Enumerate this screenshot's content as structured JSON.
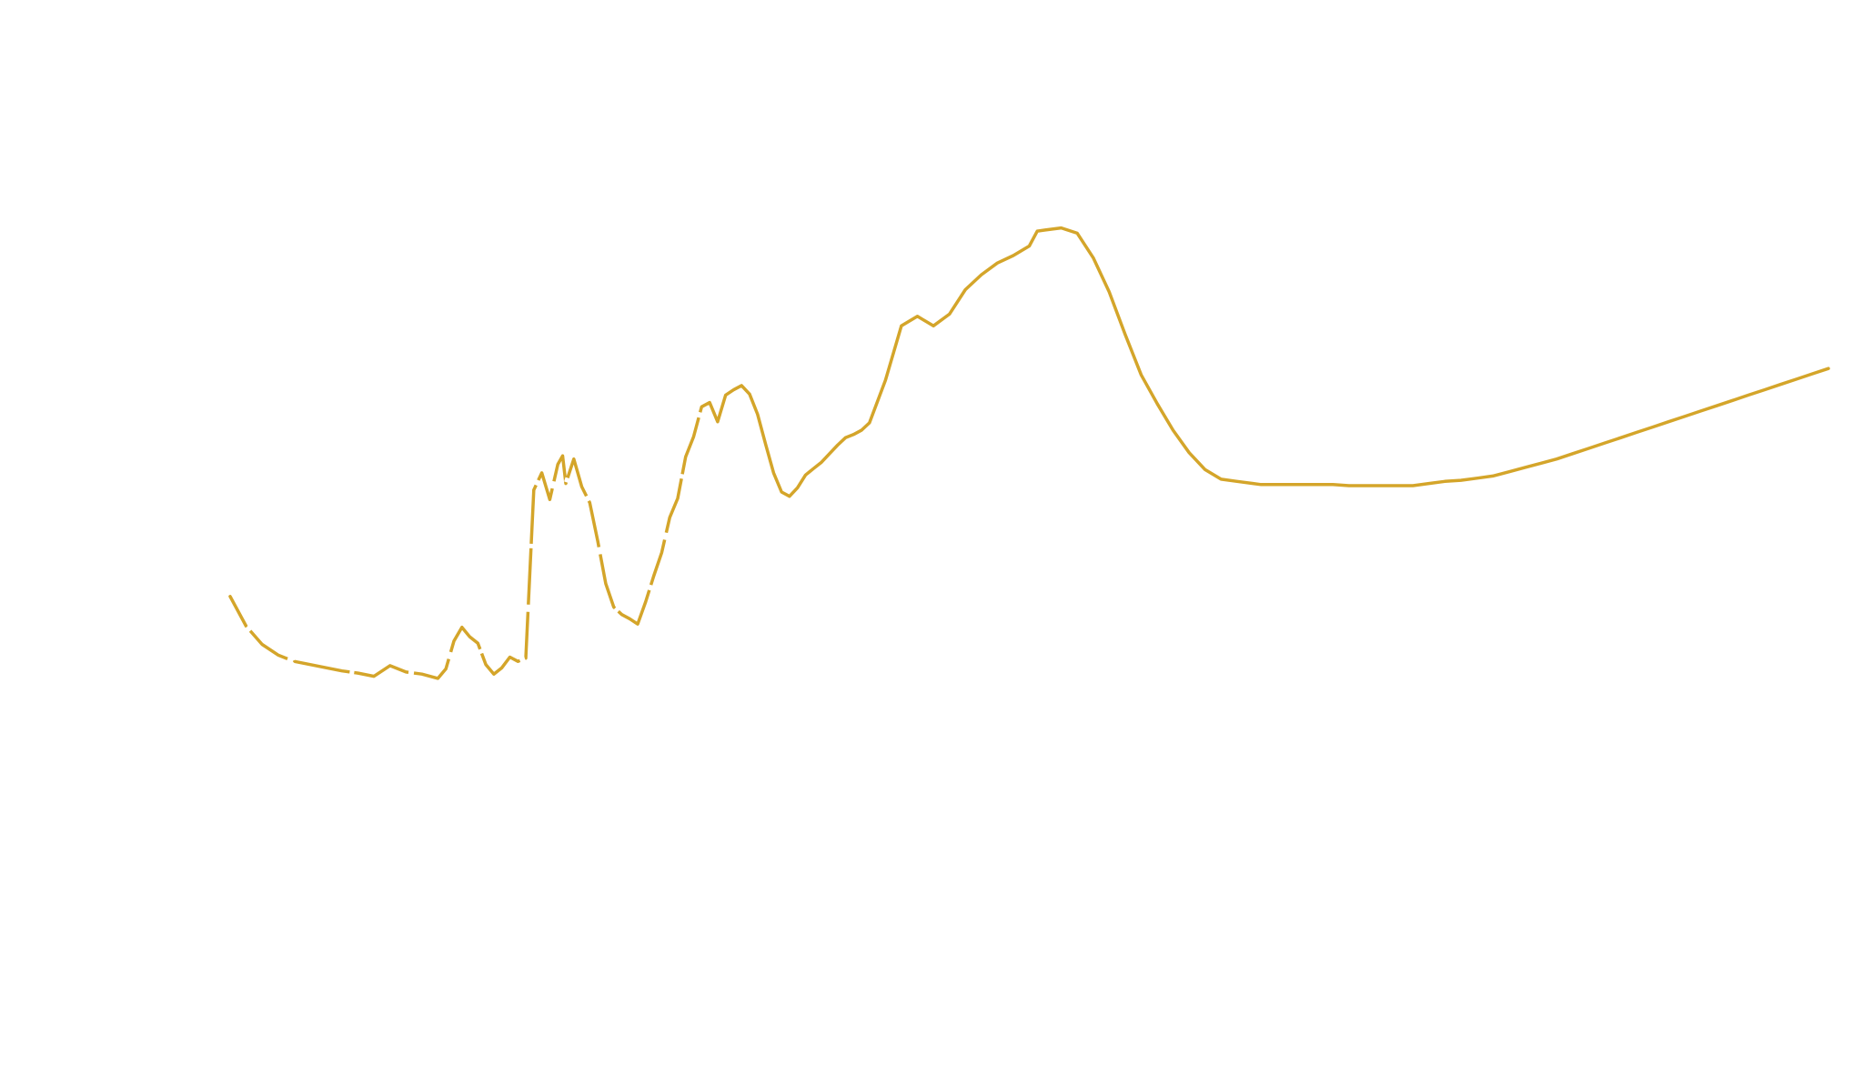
{
  "chart_data": {
    "type": "line",
    "title": "",
    "xlabel": "",
    "ylabel": "",
    "grid": false,
    "legend": "none",
    "axes_visible": false,
    "xlim": [
      0,
      100
    ],
    "ylim": [
      0,
      100
    ],
    "series": [
      {
        "color": "#d4a52a",
        "gap_color": "#ffffff",
        "x": [
          0,
          1,
          2,
          3,
          4,
          5,
          6,
          7,
          8,
          9,
          10,
          11,
          12,
          13,
          13.5,
          14,
          14.5,
          15,
          15.5,
          16,
          16.5,
          17,
          17.5,
          18,
          18.5,
          19,
          19.5,
          20,
          20.5,
          20.8,
          21,
          21.5,
          22,
          22.5,
          23,
          23.5,
          24,
          24.5,
          25,
          25.5,
          26,
          26.5,
          27,
          27.5,
          28,
          28.5,
          29,
          29.5,
          30,
          30.5,
          31,
          31.5,
          32,
          32.5,
          33,
          33.5,
          34,
          34.5,
          35,
          35.5,
          36,
          36.5,
          37,
          37.5,
          38,
          38.5,
          39,
          39.5,
          40,
          41,
          42,
          43,
          44,
          45,
          46,
          47,
          48,
          49,
          50,
          50.5,
          51,
          52,
          53,
          54,
          55,
          56,
          57,
          58,
          59,
          60,
          61,
          62,
          63,
          64,
          64.5,
          65,
          66,
          67,
          68,
          69,
          70,
          71,
          72,
          73,
          74,
          75,
          76,
          77,
          78,
          79,
          80,
          81,
          82,
          83,
          84,
          85,
          86,
          87,
          88,
          89,
          90,
          91,
          92,
          93,
          94,
          95,
          96,
          97,
          98,
          99,
          100
        ],
        "y": [
          44.0,
          41.2,
          39.5,
          38.5,
          37.9,
          37.6,
          37.3,
          37.0,
          36.8,
          36.5,
          37.5,
          36.9,
          36.7,
          36.3,
          37.2,
          39.8,
          41.1,
          40.2,
          39.6,
          37.6,
          36.7,
          37.3,
          38.3,
          37.9,
          38.2,
          54.0,
          55.6,
          53.1,
          56.4,
          57.2,
          54.6,
          56.9,
          54.3,
          52.8,
          49.2,
          45.2,
          43.0,
          42.3,
          41.9,
          41.4,
          43.5,
          45.9,
          48.1,
          51.4,
          53.2,
          57.1,
          59.0,
          61.8,
          62.2,
          60.4,
          62.9,
          63.4,
          63.8,
          63.0,
          61.1,
          58.3,
          55.6,
          53.8,
          53.4,
          54.2,
          55.4,
          56.0,
          56.6,
          57.4,
          58.2,
          58.9,
          59.2,
          59.6,
          60.3,
          64.3,
          69.4,
          70.3,
          69.4,
          70.5,
          72.8,
          74.2,
          75.3,
          76.0,
          76.9,
          78.3,
          78.4,
          78.6,
          78.1,
          75.8,
          72.6,
          68.6,
          64.8,
          62.1,
          59.6,
          57.5,
          55.9,
          55.0,
          54.8,
          54.6,
          54.5,
          54.5,
          54.5,
          54.5,
          54.5,
          54.5,
          54.4,
          54.4,
          54.4,
          54.4,
          54.4,
          54.6,
          54.8,
          54.9,
          55.1,
          55.3,
          55.7,
          56.1,
          56.5,
          56.9,
          57.4,
          57.9,
          58.4,
          58.9,
          59.4,
          59.9,
          60.4,
          60.9,
          61.4,
          61.9,
          62.4,
          62.9,
          63.4,
          63.9,
          64.4,
          64.9,
          65.4
        ]
      }
    ]
  }
}
